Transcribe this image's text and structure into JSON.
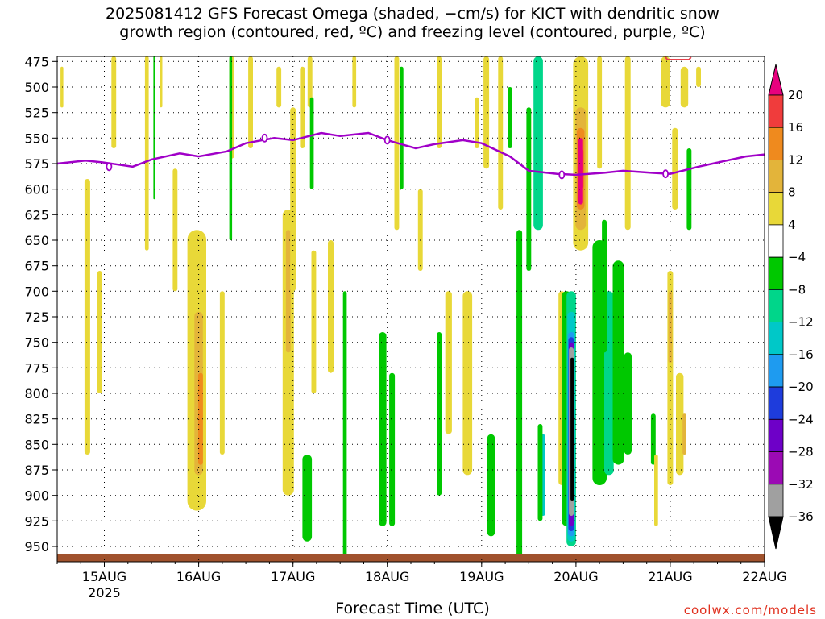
{
  "title_line1": "2025081412 GFS Forecast Omega (shaded, −cm/s) for KICT with dendritic snow",
  "title_line2": "growth region (contoured, red, ºC) and freezing level (contoured, purple, ºC)",
  "xlabel": "Forecast Time (UTC)",
  "credit": "coolwx.com/models",
  "colors": {
    "freezing_level": "#a000c8",
    "terrain": "#a0522d",
    "dgz": "#e8404a",
    "grid": "#000000"
  },
  "chart_data": {
    "type": "heatmap",
    "title": "2025081412 GFS Forecast Omega (shaded, −cm/s) for KICT with dendritic snow growth region (contoured, red, ºC) and freezing level (contoured, purple, ºC)",
    "xlabel": "Forecast Time (UTC)",
    "ylabel": "",
    "x_ticks": [
      "15AUG",
      "16AUG",
      "17AUG",
      "18AUG",
      "19AUG",
      "20AUG",
      "21AUG",
      "22AUG"
    ],
    "x_year_label": "2025",
    "y_ticks": [
      475,
      500,
      525,
      550,
      575,
      600,
      625,
      650,
      675,
      700,
      725,
      750,
      775,
      800,
      825,
      850,
      875,
      900,
      925,
      950
    ],
    "y_inverted": true,
    "grid": true,
    "colorbar_labels": [
      "20",
      "16",
      "12",
      "8",
      "4",
      "−4",
      "−8",
      "−12",
      "−16",
      "−20",
      "−24",
      "−28",
      "−32",
      "−36"
    ],
    "colorbar_colors": [
      "#e8007e",
      "#f03c3c",
      "#ef8a1e",
      "#e3b43a",
      "#e8d838",
      "#ffffff",
      "#00c800",
      "#00d68a",
      "#00c8c8",
      "#1e9bf0",
      "#1e3cdc",
      "#6e00c8",
      "#9b0ab4",
      "#a0a0a0",
      "#000000"
    ],
    "series": [
      {
        "name": "freezing level",
        "x_days": [
          14.5,
          14.8,
          15.0,
          15.3,
          15.5,
          15.8,
          16.0,
          16.3,
          16.5,
          16.8,
          17.0,
          17.3,
          17.5,
          17.8,
          18.0,
          18.3,
          18.5,
          18.8,
          19.0,
          19.3,
          19.5,
          19.8,
          20.0,
          20.3,
          20.5,
          20.8,
          21.0,
          21.3,
          21.5,
          21.8,
          22.0
        ],
        "pressure_hPa": [
          575,
          572,
          574,
          578,
          571,
          565,
          568,
          563,
          555,
          550,
          552,
          545,
          548,
          545,
          552,
          560,
          556,
          552,
          555,
          568,
          582,
          585,
          586,
          584,
          582,
          584,
          585,
          578,
          574,
          568,
          566
        ]
      }
    ],
    "omega_features": [
      {
        "x_day": 19.95,
        "p_top": 700,
        "p_bottom": 960,
        "max": "<=-36"
      },
      {
        "x_day": 20.05,
        "p_top": 475,
        "p_bottom": 665,
        "max": ">=20"
      },
      {
        "x_day": 20.4,
        "p_top": 650,
        "p_bottom": 890,
        "max": "-12"
      },
      {
        "x_day": 19.5,
        "p_top": 475,
        "p_bottom": 960,
        "max": "-12"
      },
      {
        "x_day": 16.0,
        "p_top": 640,
        "p_bottom": 915,
        "max": "12"
      },
      {
        "x_day": 17.0,
        "p_top": 600,
        "p_bottom": 890,
        "max": "8"
      },
      {
        "x_day": 21.0,
        "p_top": 680,
        "p_bottom": 890,
        "max": "12"
      }
    ]
  }
}
